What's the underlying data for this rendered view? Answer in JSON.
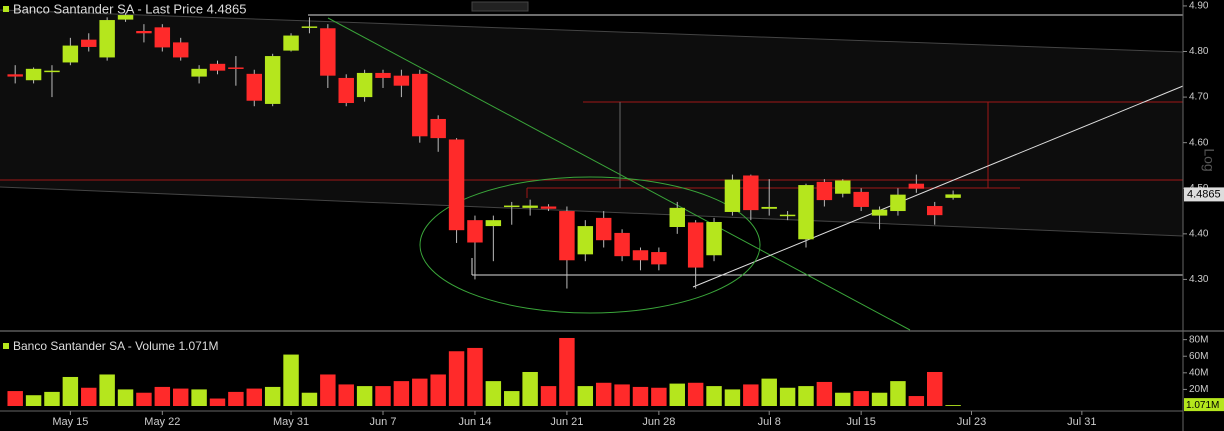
{
  "chart_data": [
    {
      "type": "candlestick",
      "title": "Banco Santander SA - Last Price 4.4865",
      "last_price": 4.4865,
      "axis_note": "Log",
      "up_color": "#b5e61d",
      "down_color": "#ff2a2a",
      "open": [
        4.75,
        4.737,
        4.757,
        4.776,
        4.826,
        4.787,
        4.87,
        4.845,
        4.853,
        4.82,
        4.745,
        4.773,
        4.765,
        4.751,
        4.685,
        4.802,
        4.852,
        4.851,
        4.742,
        4.7,
        4.753,
        4.747,
        4.751,
        4.652,
        4.607,
        4.43,
        4.417,
        4.46,
        4.457,
        4.46,
        4.45,
        4.355,
        4.435,
        4.402,
        4.364,
        4.36,
        4.415,
        4.425,
        4.353,
        4.448,
        4.528,
        4.455,
        4.44,
        4.388,
        4.514,
        4.488,
        4.492,
        4.44,
        4.45,
        4.51,
        4.461,
        4.479,
        null,
        null,
        null,
        null,
        null,
        null,
        null,
        null,
        null,
        null,
        null,
        null
      ],
      "high": [
        4.77,
        4.765,
        4.77,
        4.83,
        4.84,
        4.875,
        4.885,
        4.86,
        4.86,
        4.83,
        4.77,
        4.78,
        4.79,
        4.76,
        4.795,
        4.84,
        4.875,
        4.86,
        4.75,
        4.76,
        4.76,
        4.76,
        4.76,
        4.66,
        4.61,
        4.44,
        4.44,
        4.47,
        4.475,
        4.465,
        4.46,
        4.43,
        4.45,
        4.41,
        4.37,
        4.37,
        4.47,
        4.43,
        4.435,
        4.53,
        4.53,
        4.52,
        4.45,
        4.51,
        4.52,
        4.52,
        4.5,
        4.46,
        4.5,
        4.53,
        4.47,
        4.495,
        null,
        null,
        null,
        null,
        null,
        null,
        null,
        null,
        null,
        null,
        null,
        null
      ],
      "low": [
        4.73,
        4.73,
        4.7,
        4.77,
        4.8,
        4.78,
        4.865,
        4.82,
        4.8,
        4.78,
        4.73,
        4.75,
        4.725,
        4.68,
        4.68,
        4.8,
        4.84,
        4.72,
        4.68,
        4.69,
        4.72,
        4.7,
        4.6,
        4.58,
        4.38,
        4.3,
        4.34,
        4.42,
        4.44,
        4.45,
        4.28,
        4.34,
        4.37,
        4.34,
        4.32,
        4.32,
        4.4,
        4.28,
        4.34,
        4.44,
        4.43,
        4.44,
        4.43,
        4.37,
        4.46,
        4.48,
        4.45,
        4.41,
        4.44,
        4.49,
        4.42,
        4.475,
        null,
        null,
        null,
        null,
        null,
        null,
        null,
        null,
        null,
        null,
        null,
        null
      ],
      "close": [
        4.745,
        4.762,
        4.758,
        4.813,
        4.81,
        4.869,
        4.88,
        4.84,
        4.809,
        4.787,
        4.762,
        4.758,
        4.764,
        4.692,
        4.79,
        4.835,
        4.855,
        4.747,
        4.687,
        4.753,
        4.742,
        4.725,
        4.614,
        4.61,
        4.408,
        4.381,
        4.43,
        4.462,
        4.462,
        4.455,
        4.342,
        4.417,
        4.386,
        4.351,
        4.342,
        4.333,
        4.457,
        4.326,
        4.426,
        4.519,
        4.452,
        4.459,
        4.442,
        4.507,
        4.474,
        4.517,
        4.459,
        4.453,
        4.486,
        4.499,
        4.441,
        4.4865,
        null,
        null,
        null,
        null,
        null,
        null,
        null,
        null,
        null,
        null,
        null,
        null
      ],
      "ylim": [
        4.2,
        4.913
      ],
      "yticks": [
        {
          "value": 4.3,
          "label": "4.30"
        },
        {
          "value": 4.4,
          "label": "4.40"
        },
        {
          "value": 4.5,
          "label": "4.50"
        },
        {
          "value": 4.6,
          "label": "4.60"
        },
        {
          "value": 4.7,
          "label": "4.70"
        },
        {
          "value": 4.8,
          "label": "4.80"
        },
        {
          "value": 4.9,
          "label": "4.90"
        }
      ]
    },
    {
      "type": "bar",
      "title": "Banco Santander SA - Volume 1.071M",
      "last_volume": {
        "value": 1071000,
        "label": "1.071M"
      },
      "categories": [
        null,
        null,
        null,
        "May 15",
        null,
        null,
        null,
        null,
        "May 22",
        null,
        null,
        null,
        null,
        null,
        null,
        "May 31",
        null,
        null,
        null,
        null,
        "Jun 7",
        null,
        null,
        null,
        null,
        "Jun 14",
        null,
        null,
        null,
        null,
        "Jun 21",
        null,
        null,
        null,
        null,
        "Jun 28",
        null,
        null,
        null,
        null,
        null,
        "Jul 8",
        null,
        null,
        null,
        null,
        "Jul 15",
        null,
        null,
        null,
        null,
        null,
        "Jul 23",
        null,
        null,
        null,
        null,
        null,
        "Jul 31",
        null,
        null,
        null,
        null,
        null
      ],
      "values": [
        18000000,
        13000000,
        17000000,
        35000000,
        22000000,
        38000000,
        20000000,
        16000000,
        23000000,
        21000000,
        20000000,
        9000000,
        17000000,
        21000000,
        23000000,
        62000000,
        16000000,
        38000000,
        26000000,
        24000000,
        24000000,
        30000000,
        33000000,
        38000000,
        66000000,
        70000000,
        30000000,
        18000000,
        41000000,
        24000000,
        82000000,
        24000000,
        28000000,
        26000000,
        23000000,
        22000000,
        27000000,
        28000000,
        24000000,
        20000000,
        26000000,
        33000000,
        22000000,
        24000000,
        29000000,
        16000000,
        18000000,
        16000000,
        30000000,
        12000000,
        41000000,
        1071000,
        null,
        null,
        null,
        null,
        null,
        null,
        null,
        null,
        null,
        null,
        null,
        null
      ],
      "ylim": [
        0,
        88000000
      ],
      "yticks": [
        {
          "value": 20000000,
          "label": "20M"
        },
        {
          "value": 40000000,
          "label": "40M"
        },
        {
          "value": 60000000,
          "label": "60M"
        },
        {
          "value": 80000000,
          "label": "80M"
        }
      ]
    }
  ]
}
